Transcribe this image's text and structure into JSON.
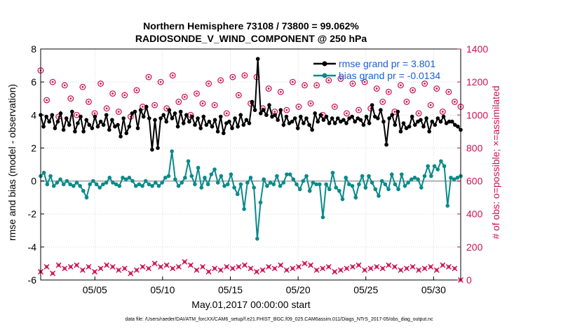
{
  "title_line1": "Northern Hemisphere 73108 / 73800 = 99.062%",
  "title_line2": "RADIOSONDE_V_WIND_COMPONENT @ 250 hPa",
  "xlabel": "May.01,2017 00:00:00 start",
  "ylabel_left": "rmse and bias (model - observation)",
  "ylabel_right": "# of obs: o=possible; ×=assimilated",
  "footer": "data file: /Users/raeder/DAI/ATM_forcXX/CAM6_setup/f.e21.FHIST_BGC.f09_025.CAM6assim.011/Diags_NTrS_2017-05/obs_diag_output.nc",
  "colors": {
    "rmse": "#000000",
    "bias": "#0a8a8a",
    "obs": "#d01a5a",
    "zero": "#b0b0b0"
  },
  "chart_data": {
    "type": "line",
    "x_range": [
      1.0,
      32.0
    ],
    "x_unit": "day of May 2017",
    "x_ticks": [
      5,
      10,
      15,
      20,
      25,
      30
    ],
    "x_tick_labels": [
      "05/05",
      "05/10",
      "05/15",
      "05/20",
      "05/25",
      "05/30"
    ],
    "ylim_left": [
      -6,
      8
    ],
    "yticks_left": [
      -6,
      -4,
      -2,
      0,
      2,
      4,
      6,
      8
    ],
    "ylim_right": [
      0,
      1400
    ],
    "yticks_right": [
      0,
      200,
      400,
      600,
      800,
      1000,
      1200,
      1400
    ],
    "grid": "dotted",
    "legend_position": "top-right",
    "series": [
      {
        "name": "rmse grand pr = 3.801",
        "axis": "left",
        "marker": "dot",
        "values": [
          4.0,
          3.3,
          3.9,
          3.6,
          4.0,
          3.2,
          3.6,
          4.1,
          3.1,
          3.8,
          3.4,
          4.2,
          3.0,
          3.5,
          3.9,
          3.0,
          3.7,
          3.4,
          3.2,
          3.9,
          3.3,
          3.6,
          3.4,
          4.0,
          3.1,
          3.7,
          3.3,
          3.4,
          2.7,
          3.8,
          2.9,
          3.3,
          4.1,
          4.2,
          3.2,
          4.3,
          3.9,
          4.5,
          3.8,
          1.9,
          3.7,
          2.0,
          3.8,
          4.0,
          3.6,
          4.3,
          3.8,
          4.1,
          3.3,
          4.2,
          3.5,
          4.0,
          3.6,
          3.9,
          3.4,
          3.8,
          3.2,
          3.9,
          3.4,
          3.6,
          3.3,
          3.7,
          3.0,
          3.9,
          2.9,
          3.5,
          3.6,
          3.2,
          3.8,
          3.3,
          4.0,
          3.4,
          3.7,
          3.5,
          4.8,
          4.3,
          7.4,
          4.1,
          4.3,
          4.0,
          4.6,
          3.9,
          4.0,
          3.7,
          4.3,
          3.4,
          3.9,
          3.5,
          3.6,
          3.8,
          3.2,
          3.9,
          3.5,
          3.8,
          3.4,
          3.1,
          4.1,
          3.6,
          4.0,
          3.7,
          3.9,
          3.5,
          3.8,
          3.5,
          3.8,
          3.6,
          3.7,
          3.5,
          3.8,
          3.9,
          3.6,
          3.8,
          3.7,
          3.4,
          3.9,
          3.5,
          4.6,
          3.9,
          3.8,
          4.3,
          3.6,
          2.2,
          3.8,
          4.0,
          3.4,
          4.2,
          3.0,
          3.5,
          3.2,
          3.3,
          3.9,
          3.4,
          3.6,
          3.7,
          3.3,
          3.8,
          3.0,
          3.6,
          3.4,
          3.8,
          3.6,
          3.9,
          3.5,
          3.6,
          3.6,
          3.4,
          3.3,
          3.1
        ]
      },
      {
        "name": "bias grand pr = -0.0134",
        "axis": "left",
        "marker": "dot",
        "values": [
          0.3,
          0.5,
          -0.2,
          0.3,
          -0.3,
          -0.1,
          0.1,
          -0.2,
          0.0,
          -0.2,
          -0.3,
          -0.1,
          -0.3,
          -0.6,
          -1.0,
          -0.2,
          0.0,
          -0.2,
          -0.4,
          -0.2,
          -0.1,
          0.2,
          -0.1,
          -0.2,
          -0.3,
          0.2,
          0.1,
          0.2,
          0.0,
          -0.3,
          -0.2,
          -0.3,
          0.0,
          -0.2,
          -0.3,
          -0.1,
          -0.3,
          -0.1,
          0.2,
          0.3,
          1.8,
          0.1,
          -0.3,
          -0.1,
          0.2,
          1.2,
          0.3,
          -0.2,
          0.8,
          -0.4,
          0.2,
          -0.2,
          0.4,
          0.7,
          -0.1,
          0.3,
          -0.3,
          -0.2,
          0.4,
          -0.4,
          -0.8,
          -0.2,
          -1.7,
          -0.1,
          0.2,
          -0.4,
          -3.5,
          -1.3,
          0.1,
          -0.3,
          -0.1,
          -0.2,
          0.3,
          -0.3,
          -0.1,
          0.4,
          0.4,
          0.1,
          -0.2,
          -0.5,
          0.0,
          0.3,
          -0.6,
          -0.1,
          -0.2,
          -0.2,
          -2.2,
          -0.2,
          -0.5,
          0.5,
          -0.4,
          -0.6,
          -1.1,
          0.2,
          -0.2,
          -0.3,
          -1.0,
          -0.2,
          0.3,
          -0.4,
          0.3,
          -0.1,
          -0.5,
          -0.9,
          0.0,
          -0.2,
          -0.5,
          0.4,
          -0.2,
          -0.5,
          0.4,
          -0.3,
          -0.1,
          0.1,
          0.2,
          0.1,
          -0.4,
          0.3,
          0.9,
          0.3,
          0.9,
          0.7,
          1.2,
          0.9,
          -1.5,
          0.2,
          0.1,
          0.2,
          0.3
        ]
      },
      {
        "name": "obs possible",
        "axis": "right",
        "marker": "circle",
        "values": [
          1270,
          1090,
          1200,
          990,
          1180,
          1100,
          1000,
          1170,
          1080,
          1010,
          1190,
          1040,
          1130,
          1020,
          1120,
          990,
          1150,
          1050,
          1230,
          1060,
          1200,
          1040,
          1240,
          1080,
          1110,
          1000,
          1130,
          1070,
          1190,
          1060,
          1210,
          1010,
          1230,
          1120,
          1240,
          1070,
          1230,
          1040,
          1160,
          1020,
          1140,
          1030,
          1200,
          1050,
          1180,
          1070,
          1180,
          1000,
          1210,
          1050,
          1220,
          1010,
          1190,
          1030,
          1200,
          1040,
          1160,
          1080,
          1140,
          1020,
          1180,
          1080,
          1150,
          1010,
          1190,
          1060,
          1160,
          1020,
          1140,
          1080,
          1050
        ]
      },
      {
        "name": "obs assimilated",
        "axis": "right",
        "marker": "x",
        "values": [
          50,
          80,
          40,
          90,
          70,
          80,
          90,
          60,
          80,
          50,
          70,
          90,
          80,
          60,
          70,
          40,
          60,
          80,
          70,
          100,
          80,
          90,
          70,
          80,
          110,
          90,
          60,
          80,
          50,
          70,
          60,
          80,
          70,
          80,
          90,
          70,
          50,
          60,
          80,
          70,
          90,
          60,
          70,
          80,
          100,
          90,
          60,
          70,
          80,
          50,
          60,
          70,
          80,
          90,
          60,
          70,
          80,
          70,
          90,
          80,
          60,
          70,
          80,
          60,
          70,
          80,
          60,
          90,
          80,
          70,
          0
        ]
      }
    ]
  }
}
